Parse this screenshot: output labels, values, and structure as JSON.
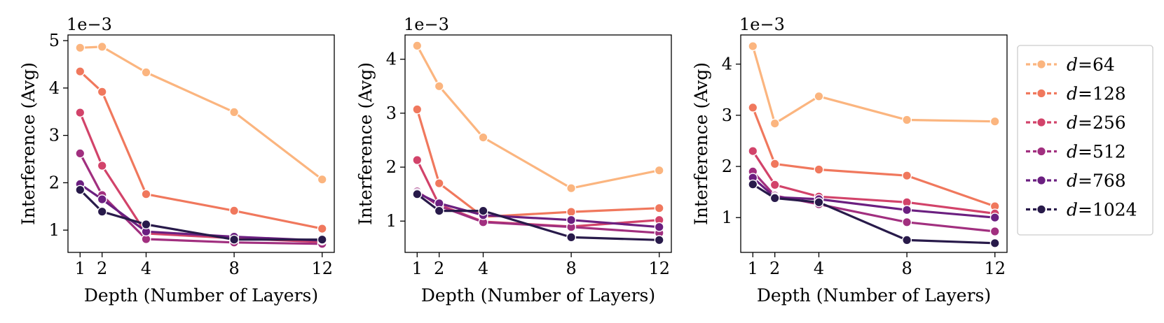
{
  "chart_data": [
    {
      "type": "line",
      "xlabel": "Depth (Number of Layers)",
      "ylabel": "Interference (Avg)",
      "offset_label": "1e−3",
      "x": [
        1,
        2,
        4,
        8,
        12
      ],
      "xticks": [
        "1",
        "2",
        "4",
        "8",
        "12"
      ],
      "yticks": [
        1,
        2,
        3,
        4,
        5
      ],
      "ylim": [
        0.53,
        5.12
      ],
      "series": [
        {
          "legend_key": 0,
          "values": [
            4.85,
            4.87,
            4.33,
            3.49,
            2.07
          ]
        },
        {
          "legend_key": 1,
          "values": [
            4.35,
            3.92,
            1.76,
            1.41,
            1.03
          ]
        },
        {
          "legend_key": 2,
          "values": [
            3.48,
            2.36,
            0.93,
            0.83,
            0.75
          ]
        },
        {
          "legend_key": 3,
          "values": [
            2.62,
            1.74,
            0.81,
            0.74,
            0.71
          ]
        },
        {
          "legend_key": 4,
          "values": [
            1.97,
            1.65,
            0.97,
            0.86,
            0.78
          ]
        },
        {
          "legend_key": 5,
          "values": [
            1.85,
            1.39,
            1.12,
            0.8,
            0.8
          ]
        }
      ]
    },
    {
      "type": "line",
      "xlabel": "Depth (Number of Layers)",
      "ylabel": "Interference (Avg)",
      "offset_label": "1e−3",
      "x": [
        1,
        2,
        4,
        8,
        12
      ],
      "xticks": [
        "1",
        "2",
        "4",
        "8",
        "12"
      ],
      "yticks": [
        1,
        2,
        3,
        4
      ],
      "ylim": [
        0.42,
        4.45
      ],
      "series": [
        {
          "legend_key": 0,
          "values": [
            4.25,
            3.5,
            2.55,
            1.61,
            1.94
          ]
        },
        {
          "legend_key": 1,
          "values": [
            3.07,
            1.7,
            1.08,
            1.17,
            1.24
          ]
        },
        {
          "legend_key": 2,
          "values": [
            2.13,
            1.3,
            0.99,
            0.9,
            1.02
          ]
        },
        {
          "legend_key": 3,
          "values": [
            1.55,
            1.28,
            0.98,
            0.89,
            0.78
          ]
        },
        {
          "legend_key": 4,
          "values": [
            1.52,
            1.33,
            1.11,
            1.02,
            0.89
          ]
        },
        {
          "legend_key": 5,
          "values": [
            1.5,
            1.19,
            1.19,
            0.7,
            0.65
          ]
        }
      ]
    },
    {
      "type": "line",
      "xlabel": "Depth (Number of Layers)",
      "ylabel": "Interference (Avg)",
      "offset_label": "1e−3",
      "x": [
        1,
        2,
        4,
        8,
        12
      ],
      "xticks": [
        "1",
        "2",
        "4",
        "8",
        "12"
      ],
      "yticks": [
        1,
        2,
        3,
        4
      ],
      "ylim": [
        0.32,
        4.57
      ],
      "series": [
        {
          "legend_key": 0,
          "values": [
            4.35,
            2.84,
            3.37,
            2.91,
            2.88
          ]
        },
        {
          "legend_key": 1,
          "values": [
            3.15,
            2.05,
            1.94,
            1.82,
            1.22
          ]
        },
        {
          "legend_key": 2,
          "values": [
            2.3,
            1.64,
            1.41,
            1.3,
            1.08
          ]
        },
        {
          "legend_key": 3,
          "values": [
            1.9,
            1.43,
            1.26,
            0.91,
            0.73
          ]
        },
        {
          "legend_key": 4,
          "values": [
            1.78,
            1.4,
            1.36,
            1.15,
            1.0
          ]
        },
        {
          "legend_key": 5,
          "values": [
            1.65,
            1.38,
            1.3,
            0.56,
            0.5
          ]
        }
      ]
    }
  ],
  "legend": {
    "placement": "right",
    "entries": [
      {
        "var": "d",
        "eq": "=64",
        "color": "#fbb57f"
      },
      {
        "var": "d",
        "eq": "=128",
        "color": "#f0785d"
      },
      {
        "var": "d",
        "eq": "=256",
        "color": "#d2436a"
      },
      {
        "var": "d",
        "eq": "=512",
        "color": "#a12f7f"
      },
      {
        "var": "d",
        "eq": "=768",
        "color": "#6b1f80"
      },
      {
        "var": "d",
        "eq": "=1024",
        "color": "#281a4a"
      }
    ]
  }
}
